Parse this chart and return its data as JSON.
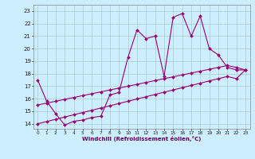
{
  "xlabel": "Windchill (Refroidissement éolien,°C)",
  "bg_color": "#cceeff",
  "grid_color": "#aacccc",
  "line_color": "#990077",
  "x_ticks": [
    0,
    1,
    2,
    3,
    4,
    5,
    6,
    7,
    8,
    9,
    10,
    11,
    12,
    13,
    14,
    15,
    16,
    17,
    18,
    19,
    20,
    21,
    22,
    23
  ],
  "y_ticks": [
    14,
    15,
    16,
    17,
    18,
    19,
    20,
    21,
    22,
    23
  ],
  "xlim": [
    -0.5,
    23.5
  ],
  "ylim": [
    13.6,
    23.5
  ],
  "line1_x": [
    0,
    1,
    2,
    3,
    4,
    5,
    6,
    7,
    8,
    9,
    10,
    11,
    12,
    13,
    14,
    15,
    16,
    17,
    18,
    19,
    20,
    21,
    22,
    23
  ],
  "line1_y": [
    17.5,
    15.8,
    14.8,
    13.9,
    14.2,
    14.3,
    14.5,
    14.6,
    16.3,
    16.5,
    19.3,
    21.5,
    20.8,
    21.0,
    17.8,
    22.5,
    22.8,
    21.0,
    22.6,
    20.0,
    19.5,
    18.5,
    18.3,
    18.3
  ],
  "line2_x": [
    0,
    1,
    2,
    3,
    4,
    5,
    6,
    7,
    8,
    9,
    10,
    11,
    12,
    13,
    14,
    15,
    16,
    17,
    18,
    19,
    20,
    21,
    22,
    23
  ],
  "line2_y": [
    15.5,
    15.65,
    15.8,
    15.95,
    16.1,
    16.25,
    16.4,
    16.55,
    16.7,
    16.85,
    17.0,
    17.15,
    17.3,
    17.45,
    17.6,
    17.75,
    17.9,
    18.05,
    18.2,
    18.35,
    18.5,
    18.65,
    18.5,
    18.3
  ],
  "line3_x": [
    0,
    1,
    2,
    3,
    4,
    5,
    6,
    7,
    8,
    9,
    10,
    11,
    12,
    13,
    14,
    15,
    16,
    17,
    18,
    19,
    20,
    21,
    22,
    23
  ],
  "line3_y": [
    14.0,
    14.18,
    14.36,
    14.54,
    14.72,
    14.9,
    15.08,
    15.26,
    15.44,
    15.62,
    15.8,
    15.98,
    16.16,
    16.34,
    16.52,
    16.7,
    16.88,
    17.06,
    17.24,
    17.42,
    17.6,
    17.78,
    17.6,
    18.3
  ]
}
